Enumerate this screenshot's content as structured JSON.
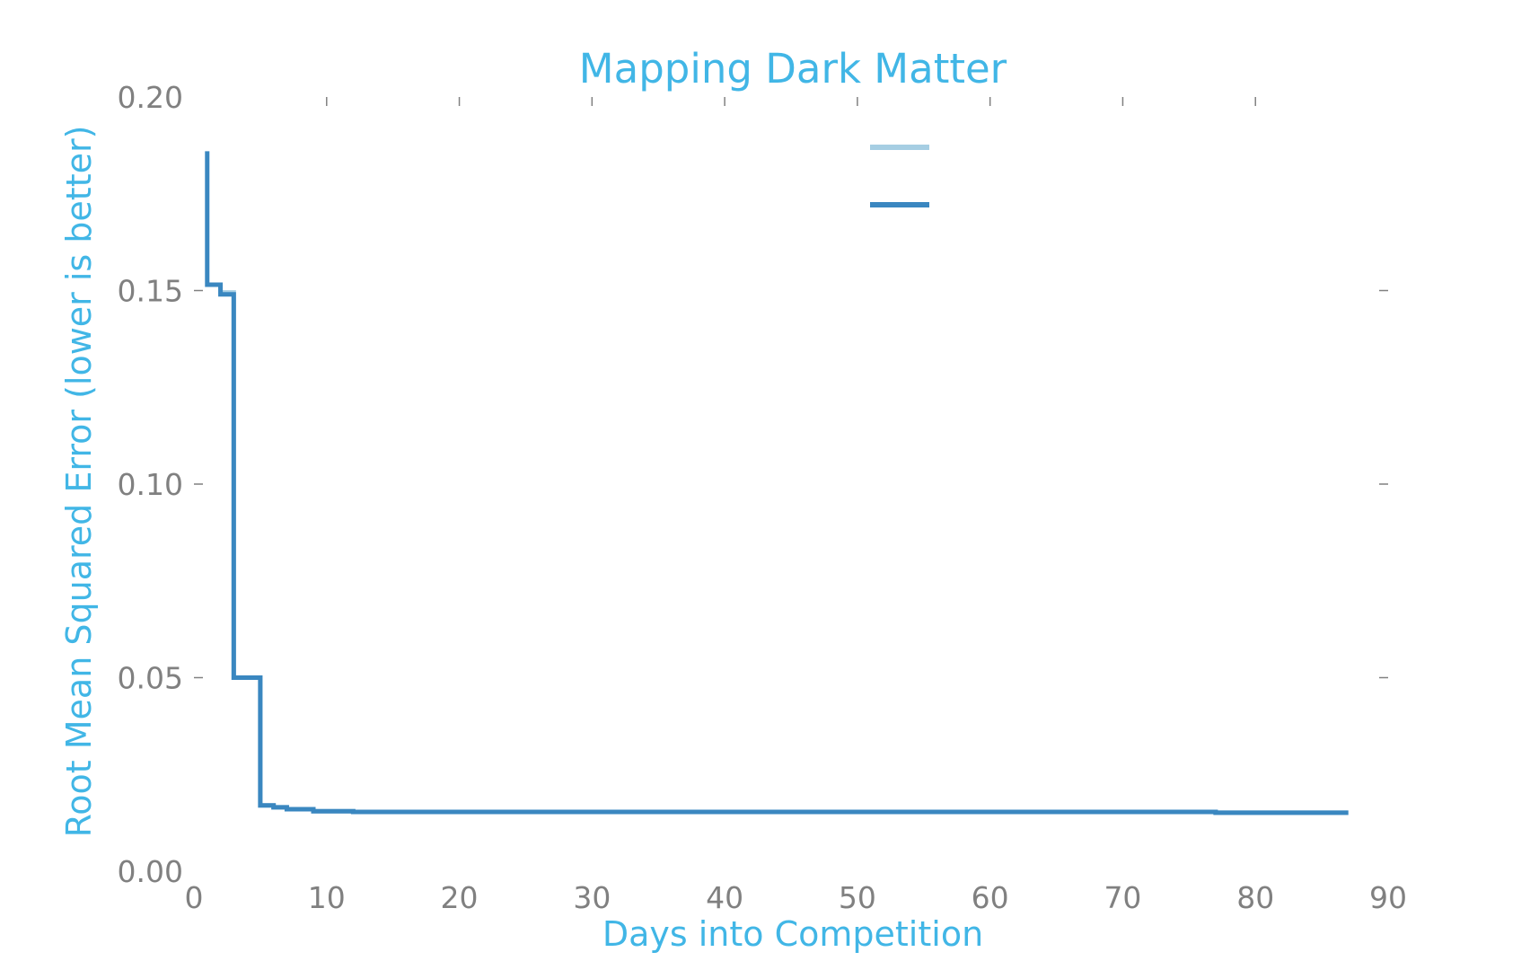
{
  "chart_data": {
    "type": "line",
    "title": "Mapping Dark Matter",
    "xlabel": "Days into Competition",
    "ylabel": "Root Mean Squared Error (lower is better)",
    "xlim": [
      0,
      90
    ],
    "ylim": [
      0,
      0.2
    ],
    "xticks": [
      0,
      10,
      20,
      30,
      40,
      50,
      60,
      70,
      80,
      90
    ],
    "xtick_labels": [
      "0",
      "10",
      "20",
      "30",
      "40",
      "50",
      "60",
      "70",
      "80",
      "90"
    ],
    "yticks": [
      0,
      0.05,
      0.1,
      0.15,
      0.2
    ],
    "ytick_labels": [
      "0.00",
      "0.05",
      "0.10",
      "0.15",
      "0.20"
    ],
    "grid": false,
    "step": true,
    "legend": {
      "position": "upper center",
      "entries": [
        {
          "name": "",
          "color": "#a6cee3"
        },
        {
          "name": "",
          "color": "#3a87c0"
        }
      ]
    },
    "series": [
      {
        "color": "#a6cee3",
        "x": [
          1,
          2,
          3,
          5,
          6,
          7,
          9,
          12,
          77,
          87
        ],
        "y": [
          0.1515,
          0.1495,
          0.05,
          0.017,
          0.0165,
          0.016,
          0.0155,
          0.0153,
          0.0151,
          0.0151
        ]
      },
      {
        "color": "#3a87c0",
        "x": [
          1,
          1,
          2,
          3,
          5,
          6,
          7,
          9,
          12,
          77,
          87
        ],
        "y": [
          0.186,
          0.1515,
          0.149,
          0.05,
          0.017,
          0.0165,
          0.016,
          0.0155,
          0.0153,
          0.0151,
          0.0151
        ]
      }
    ]
  }
}
